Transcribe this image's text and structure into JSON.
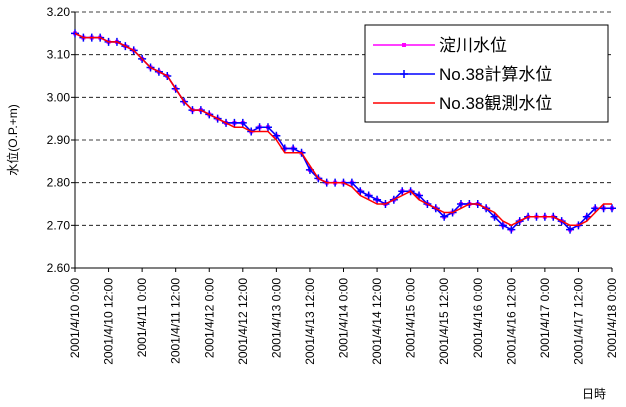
{
  "chart_data": {
    "type": "line",
    "y_label": "水位(O.P.+m)",
    "x_label": "日時",
    "xlim": [
      "2001/4/10 0:00",
      "2001/4/18 0:00"
    ],
    "xticks": [
      "2001/4/10 0:00",
      "2001/4/10 12:00",
      "2001/4/11 0:00",
      "2001/4/11 12:00",
      "2001/4/12 0:00",
      "2001/4/12 12:00",
      "2001/4/13 0:00",
      "2001/4/13 12:00",
      "2001/4/14 0:00",
      "2001/4/14 12:00",
      "2001/4/15 0:00",
      "2001/4/15 12:00",
      "2001/4/16 0:00",
      "2001/4/16 12:00",
      "2001/4/17 0:00",
      "2001/4/17 12:00",
      "2001/4/18 0:00"
    ],
    "ylim": [
      2.6,
      3.2
    ],
    "yticks": [
      {
        "value": 2.6,
        "label": "2.60"
      },
      {
        "value": 2.7,
        "label": "2.70"
      },
      {
        "value": 2.8,
        "label": "2.80"
      },
      {
        "value": 2.9,
        "label": "2.90"
      },
      {
        "value": 3.0,
        "label": "3.00"
      },
      {
        "value": 3.1,
        "label": "3.10"
      },
      {
        "value": 3.2,
        "label": "3.20"
      }
    ],
    "grid": true,
    "legend": "upper right",
    "x": [
      "2001/4/10 0:00",
      "2001/4/10 3:00",
      "2001/4/10 6:00",
      "2001/4/10 9:00",
      "2001/4/10 12:00",
      "2001/4/10 15:00",
      "2001/4/10 18:00",
      "2001/4/10 21:00",
      "2001/4/11 0:00",
      "2001/4/11 3:00",
      "2001/4/11 6:00",
      "2001/4/11 9:00",
      "2001/4/11 12:00",
      "2001/4/11 15:00",
      "2001/4/11 18:00",
      "2001/4/11 21:00",
      "2001/4/12 0:00",
      "2001/4/12 3:00",
      "2001/4/12 6:00",
      "2001/4/12 9:00",
      "2001/4/12 12:00",
      "2001/4/12 15:00",
      "2001/4/12 18:00",
      "2001/4/12 21:00",
      "2001/4/13 0:00",
      "2001/4/13 3:00",
      "2001/4/13 6:00",
      "2001/4/13 9:00",
      "2001/4/13 12:00",
      "2001/4/13 15:00",
      "2001/4/13 18:00",
      "2001/4/13 21:00",
      "2001/4/14 0:00",
      "2001/4/14 3:00",
      "2001/4/14 6:00",
      "2001/4/14 9:00",
      "2001/4/14 12:00",
      "2001/4/14 15:00",
      "2001/4/14 18:00",
      "2001/4/14 21:00",
      "2001/4/15 0:00",
      "2001/4/15 3:00",
      "2001/4/15 6:00",
      "2001/4/15 9:00",
      "2001/4/15 12:00",
      "2001/4/15 15:00",
      "2001/4/15 18:00",
      "2001/4/15 21:00",
      "2001/4/16 0:00",
      "2001/4/16 3:00",
      "2001/4/16 6:00",
      "2001/4/16 9:00",
      "2001/4/16 12:00",
      "2001/4/16 15:00",
      "2001/4/16 18:00",
      "2001/4/16 21:00",
      "2001/4/17 0:00",
      "2001/4/17 3:00",
      "2001/4/17 6:00",
      "2001/4/17 9:00",
      "2001/4/17 12:00",
      "2001/4/17 15:00",
      "2001/4/17 18:00",
      "2001/4/17 21:00",
      "2001/4/18 0:00"
    ],
    "series": [
      {
        "name": "淀川水位",
        "color": "#ff00ff",
        "marker": "square",
        "values": [
          3.15,
          3.14,
          3.14,
          3.14,
          3.13,
          3.13,
          3.12,
          3.11,
          3.09,
          3.07,
          3.06,
          3.05,
          3.02,
          2.99,
          2.97,
          2.97,
          2.96,
          2.95,
          2.94,
          2.94,
          2.94,
          2.92,
          2.93,
          2.93,
          2.91,
          2.88,
          2.88,
          2.87,
          2.83,
          2.81,
          2.8,
          2.8,
          2.8,
          2.8,
          2.78,
          2.77,
          2.76,
          2.75,
          2.76,
          2.78,
          2.78,
          2.77,
          2.75,
          2.74,
          2.72,
          2.73,
          2.75,
          2.75,
          2.75,
          2.74,
          2.72,
          2.7,
          2.69,
          2.71,
          2.72,
          2.72,
          2.72,
          2.72,
          2.71,
          2.69,
          2.7,
          2.72,
          2.74,
          2.74,
          2.74
        ]
      },
      {
        "name": "No.38計算水位",
        "color": "#0000ff",
        "marker": "plus",
        "values": [
          3.15,
          3.14,
          3.14,
          3.14,
          3.13,
          3.13,
          3.12,
          3.11,
          3.09,
          3.07,
          3.06,
          3.05,
          3.02,
          2.99,
          2.97,
          2.97,
          2.96,
          2.95,
          2.94,
          2.94,
          2.94,
          2.92,
          2.93,
          2.93,
          2.91,
          2.88,
          2.88,
          2.87,
          2.83,
          2.81,
          2.8,
          2.8,
          2.8,
          2.8,
          2.78,
          2.77,
          2.76,
          2.75,
          2.76,
          2.78,
          2.78,
          2.77,
          2.75,
          2.74,
          2.72,
          2.73,
          2.75,
          2.75,
          2.75,
          2.74,
          2.72,
          2.7,
          2.69,
          2.71,
          2.72,
          2.72,
          2.72,
          2.72,
          2.71,
          2.69,
          2.7,
          2.72,
          2.74,
          2.74,
          2.74
        ]
      },
      {
        "name": "No.38観測水位",
        "color": "#ff0000",
        "values": [
          3.15,
          3.14,
          3.14,
          3.14,
          3.13,
          3.13,
          3.12,
          3.11,
          3.09,
          3.07,
          3.06,
          3.05,
          3.02,
          2.99,
          2.97,
          2.97,
          2.96,
          2.95,
          2.94,
          2.93,
          2.93,
          2.92,
          2.92,
          2.92,
          2.9,
          2.87,
          2.87,
          2.87,
          2.84,
          2.81,
          2.8,
          2.8,
          2.8,
          2.79,
          2.77,
          2.76,
          2.75,
          2.75,
          2.76,
          2.77,
          2.78,
          2.76,
          2.75,
          2.74,
          2.73,
          2.73,
          2.74,
          2.75,
          2.75,
          2.74,
          2.73,
          2.71,
          2.7,
          2.71,
          2.72,
          2.72,
          2.72,
          2.72,
          2.71,
          2.7,
          2.7,
          2.71,
          2.73,
          2.75,
          2.75
        ]
      }
    ]
  }
}
